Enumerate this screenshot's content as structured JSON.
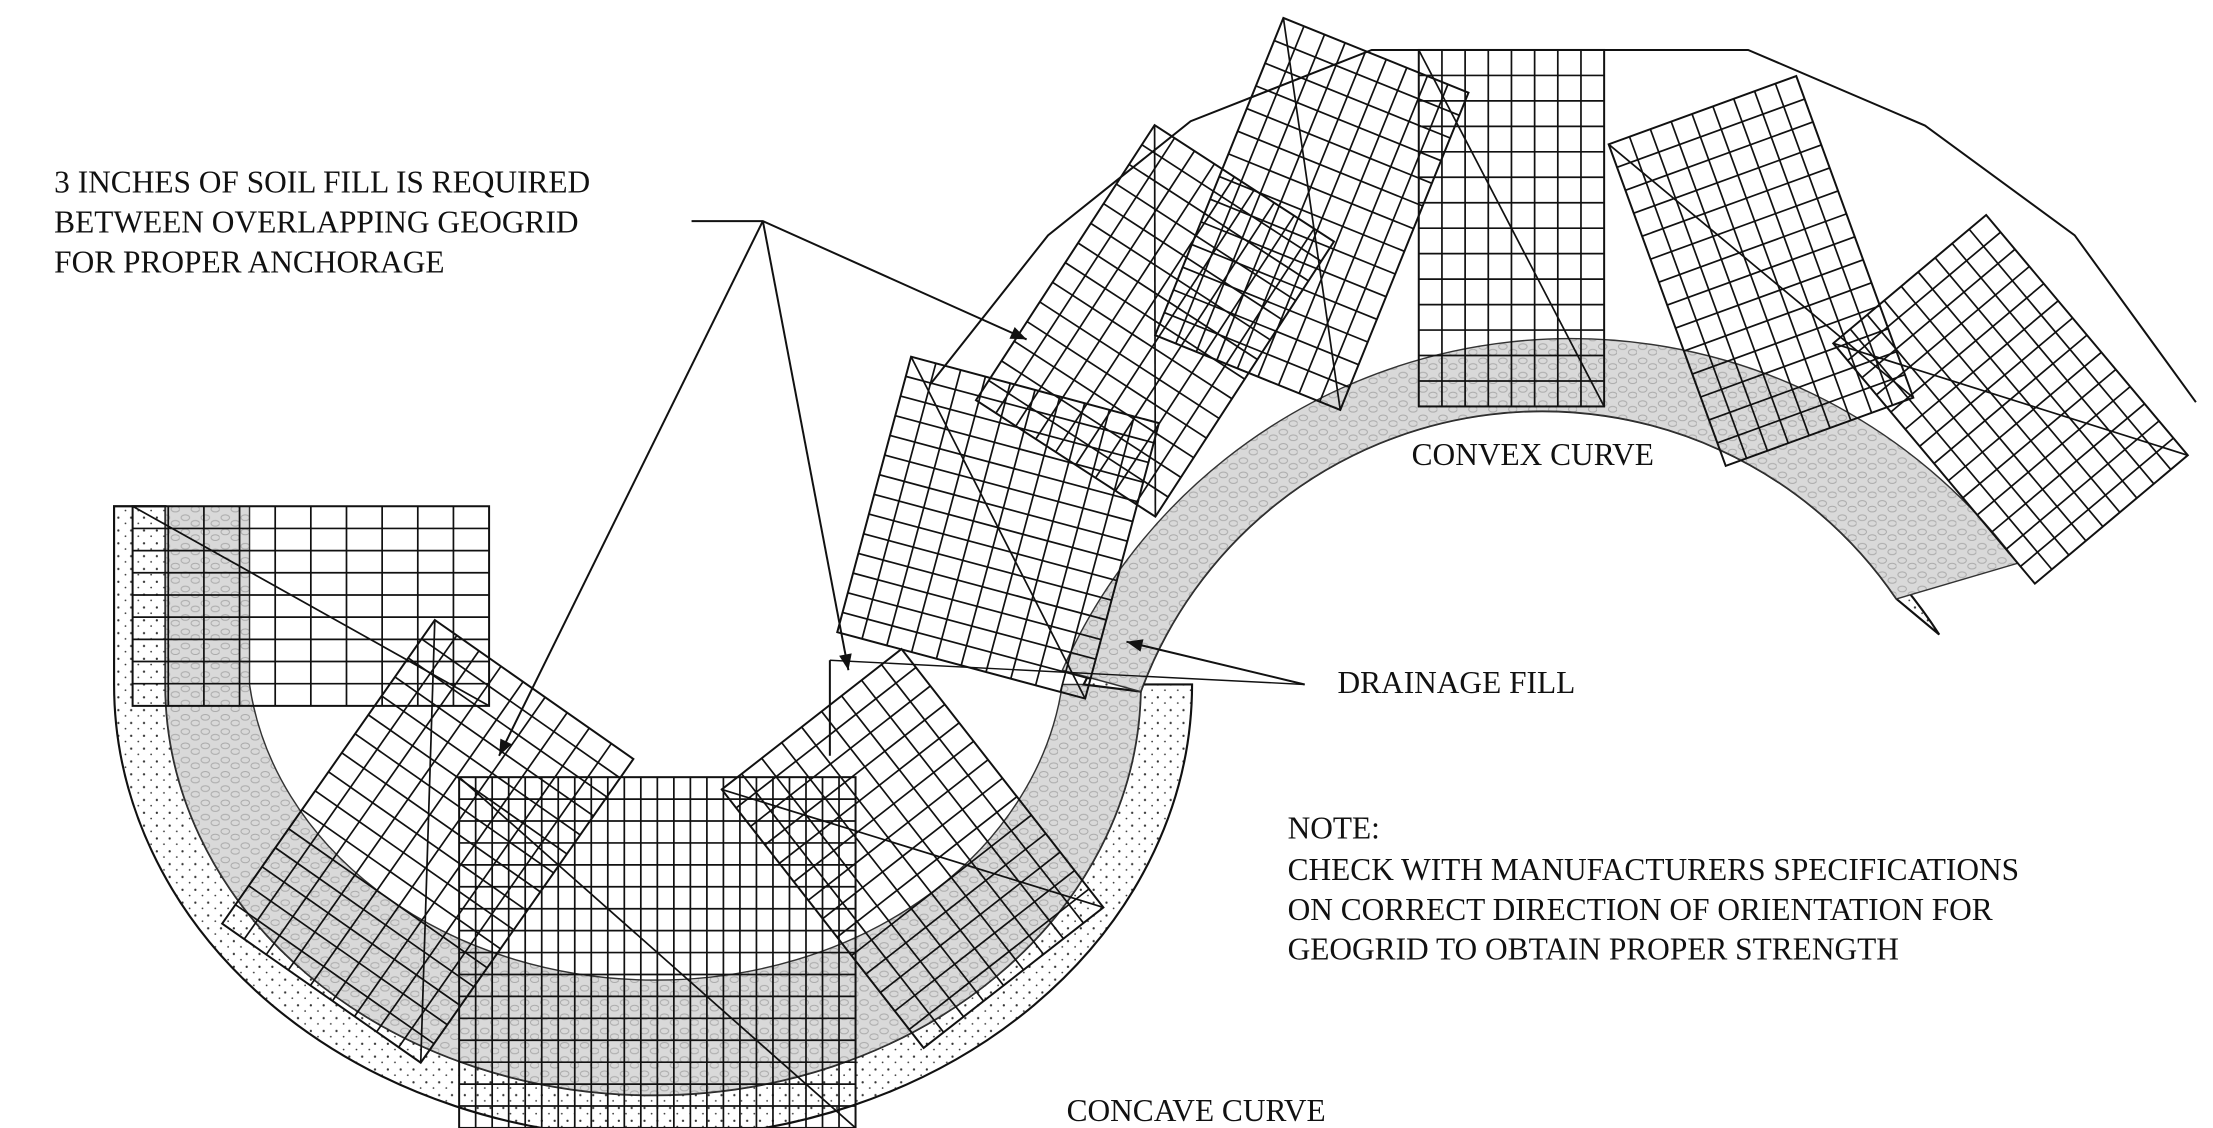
{
  "annotations": {
    "soil_fill_note": [
      "3 INCHES OF SOIL FILL IS REQUIRED",
      "BETWEEN OVERLAPPING GEOGRID",
      "FOR PROPER ANCHORAGE"
    ],
    "drainage_fill": "DRAINAGE FILL",
    "convex_curve": "CONVEX CURVE",
    "concave_curve": "CONCAVE CURVE",
    "note": {
      "title": "NOTE:",
      "lines": [
        "CHECK WITH MANUFACTURERS SPECIFICATIONS",
        "ON CORRECT DIRECTION OF ORIENTATION FOR",
        "GEOGRID TO OBTAIN PROPER STRENGTH"
      ]
    }
  }
}
